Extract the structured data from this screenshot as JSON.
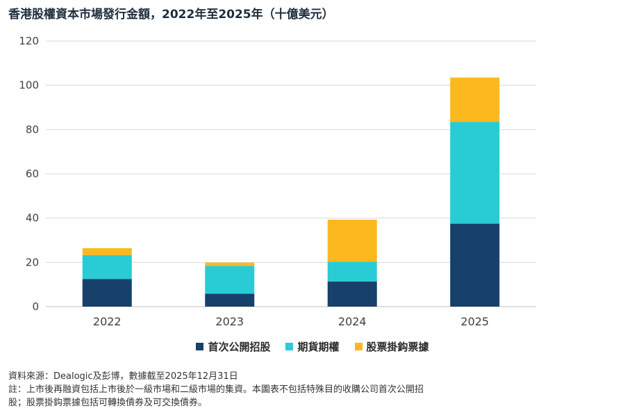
{
  "title": "香港股權資本市場發行金額，2022年至2025年（十億美元）",
  "chart_data": {
    "type": "bar",
    "stacked": true,
    "title": "香港股權資本市場發行金額，2022年至2025年（十億美元）",
    "xlabel": "",
    "ylabel": "",
    "categories": [
      "2022",
      "2023",
      "2024",
      "2025"
    ],
    "ylim": [
      0,
      120
    ],
    "yticks": [
      0,
      20,
      40,
      60,
      80,
      100,
      120
    ],
    "grid": true,
    "legend_position": "bottom",
    "series": [
      {
        "name": "首次公開招股",
        "color": "#17406b",
        "values": [
          12.5,
          5.8,
          11.3,
          37.5
        ]
      },
      {
        "name": "期貨期權",
        "color": "#29ccd4",
        "values": [
          10.8,
          12.6,
          9.0,
          46.0
        ]
      },
      {
        "name": "股票掛鈎票據",
        "color": "#fbb91f",
        "values": [
          3.1,
          1.5,
          19.0,
          20.0
        ]
      }
    ]
  },
  "footnotes": {
    "source": "資料來源：Dealogic及彭博，數據截至2025年12月31日",
    "note_line1": "註：上市後再融資包括上市後於一級市場和二級市場的集資。本圖表不包括特殊目的收購公司首次公開招",
    "note_line2": "股；股票掛鈎票據包括可轉換債券及可交換債券。"
  }
}
